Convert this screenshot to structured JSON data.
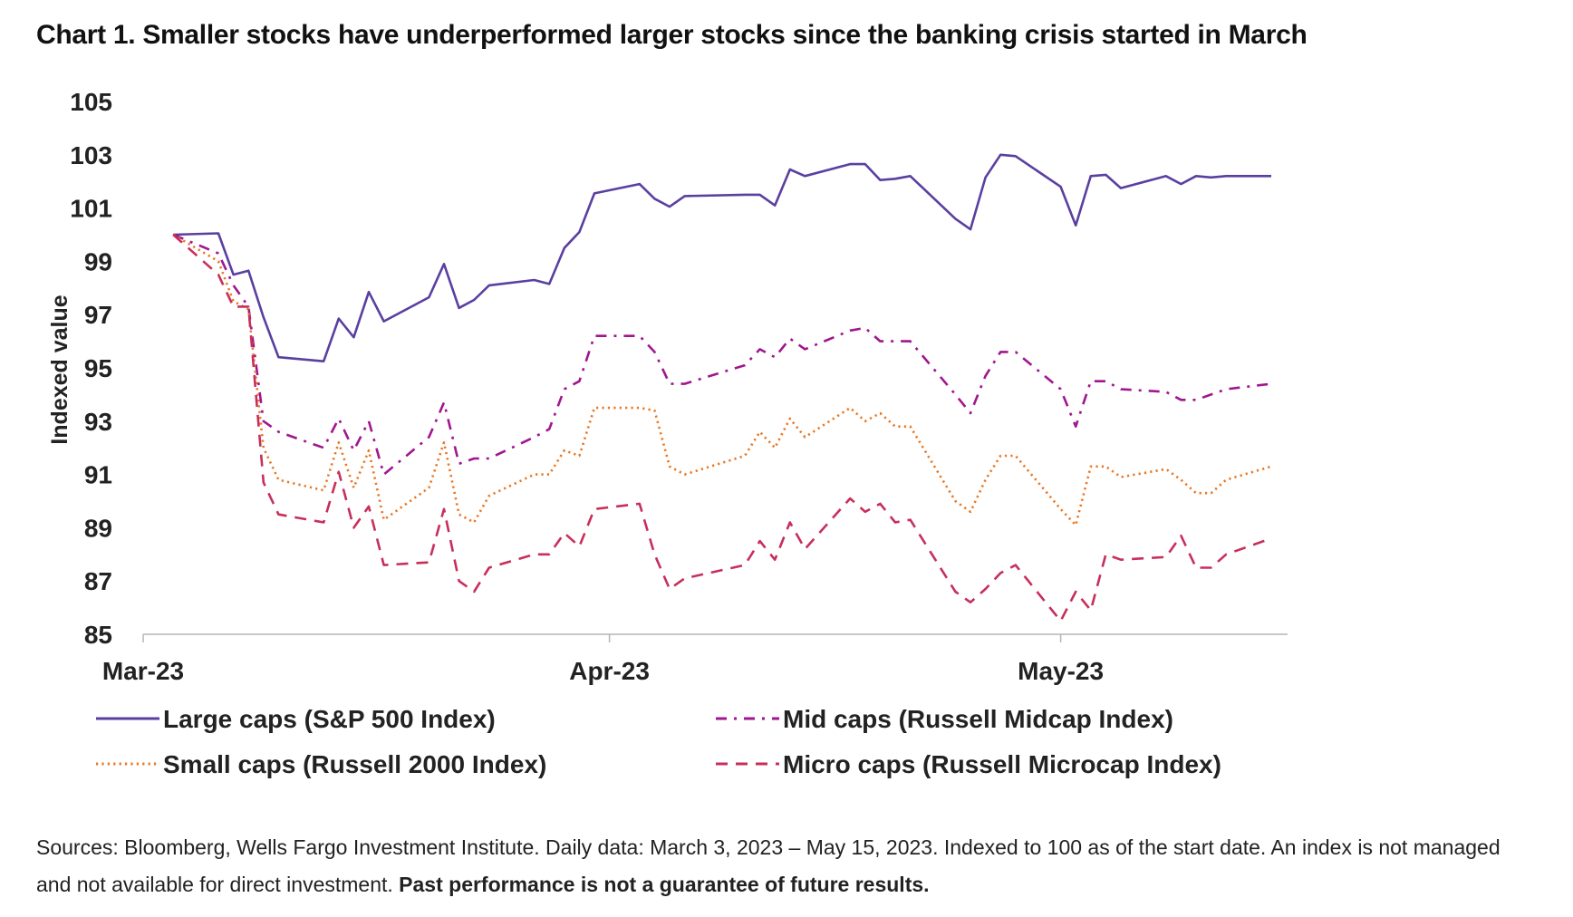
{
  "chart_data": {
    "type": "line",
    "title": "Chart 1. Smaller stocks have underperformed larger stocks since the banking crisis started in March",
    "ylabel": "Indexed value",
    "xlabel": "",
    "ylim": [
      85,
      105
    ],
    "yticks": [
      "105",
      "103",
      "101",
      "99",
      "97",
      "95",
      "93",
      "91",
      "89",
      "87",
      "85"
    ],
    "xticks": [
      {
        "label": "Mar-23",
        "date": "2023-03-01"
      },
      {
        "label": "Apr-23",
        "date": "2023-04-01"
      },
      {
        "label": "May-23",
        "date": "2023-05-01"
      }
    ],
    "grid": false,
    "legend_position": "bottom",
    "x": [
      "2023-03-03",
      "2023-03-06",
      "2023-03-07",
      "2023-03-08",
      "2023-03-09",
      "2023-03-10",
      "2023-03-13",
      "2023-03-14",
      "2023-03-15",
      "2023-03-16",
      "2023-03-17",
      "2023-03-20",
      "2023-03-21",
      "2023-03-22",
      "2023-03-23",
      "2023-03-24",
      "2023-03-27",
      "2023-03-28",
      "2023-03-29",
      "2023-03-30",
      "2023-03-31",
      "2023-04-03",
      "2023-04-04",
      "2023-04-05",
      "2023-04-06",
      "2023-04-10",
      "2023-04-11",
      "2023-04-12",
      "2023-04-13",
      "2023-04-14",
      "2023-04-17",
      "2023-04-18",
      "2023-04-19",
      "2023-04-20",
      "2023-04-21",
      "2023-04-24",
      "2023-04-25",
      "2023-04-26",
      "2023-04-27",
      "2023-04-28",
      "2023-05-01",
      "2023-05-02",
      "2023-05-03",
      "2023-05-04",
      "2023-05-05",
      "2023-05-08",
      "2023-05-09",
      "2023-05-10",
      "2023-05-11",
      "2023-05-12",
      "2023-05-15"
    ],
    "series": [
      {
        "name": "Large caps (S&P 500 Index)",
        "color": "#5b3fa0",
        "dash": "solid",
        "values": [
          100.0,
          100.05,
          98.5,
          98.65,
          96.9,
          95.4,
          95.25,
          96.85,
          96.15,
          97.85,
          96.75,
          97.65,
          98.9,
          97.25,
          97.55,
          98.1,
          98.3,
          98.15,
          99.5,
          100.1,
          101.55,
          101.9,
          101.35,
          101.05,
          101.45,
          101.5,
          101.5,
          101.1,
          102.45,
          102.2,
          102.65,
          102.65,
          102.05,
          102.1,
          102.2,
          100.6,
          100.2,
          102.15,
          103.0,
          102.95,
          101.8,
          100.35,
          102.2,
          102.25,
          101.75,
          102.2,
          101.9,
          102.2,
          102.15,
          102.2,
          102.2
        ]
      },
      {
        "name": "Mid caps (Russell Midcap Index)",
        "color": "#a0168f",
        "dash": "dashdot",
        "values": [
          100.0,
          99.3,
          98.1,
          97.3,
          93.0,
          92.6,
          92.0,
          93.1,
          91.9,
          93.0,
          91.0,
          92.4,
          93.7,
          91.4,
          91.6,
          91.6,
          92.4,
          92.7,
          94.2,
          94.5,
          96.2,
          96.2,
          95.6,
          94.4,
          94.4,
          95.1,
          95.7,
          95.4,
          96.1,
          95.7,
          96.4,
          96.5,
          96.0,
          96.0,
          96.0,
          94.0,
          93.3,
          94.7,
          95.6,
          95.6,
          94.2,
          92.8,
          94.5,
          94.5,
          94.2,
          94.1,
          93.8,
          93.8,
          94.0,
          94.2,
          94.4
        ]
      },
      {
        "name": "Small caps (Russell 2000 Index)",
        "color": "#e87722",
        "dash": "dotted",
        "values": [
          100.0,
          99.0,
          97.5,
          97.2,
          92.0,
          90.8,
          90.4,
          92.2,
          90.5,
          91.9,
          89.3,
          90.5,
          92.2,
          89.5,
          89.2,
          90.2,
          91.0,
          91.0,
          91.9,
          91.7,
          93.5,
          93.5,
          93.4,
          91.3,
          91.0,
          91.7,
          92.6,
          92.0,
          93.1,
          92.4,
          93.5,
          93.0,
          93.3,
          92.8,
          92.8,
          90.0,
          89.6,
          90.8,
          91.7,
          91.7,
          89.7,
          89.1,
          91.3,
          91.3,
          90.9,
          91.2,
          90.8,
          90.3,
          90.3,
          90.8,
          91.3
        ]
      },
      {
        "name": "Micro caps (Russell Microcap Index)",
        "color": "#c72f5b",
        "dash": "dashed",
        "values": [
          100.0,
          98.5,
          97.3,
          97.3,
          90.7,
          89.5,
          89.2,
          91.1,
          89.0,
          89.8,
          87.6,
          87.7,
          89.7,
          87.0,
          86.6,
          87.5,
          88.0,
          88.0,
          88.8,
          88.3,
          89.7,
          89.9,
          88.0,
          86.7,
          87.1,
          87.6,
          88.5,
          87.8,
          89.2,
          88.2,
          90.1,
          89.6,
          89.9,
          89.2,
          89.3,
          86.6,
          86.2,
          86.7,
          87.3,
          87.6,
          85.5,
          86.6,
          85.9,
          88.0,
          87.8,
          87.9,
          88.7,
          87.5,
          87.5,
          88.0,
          88.6
        ]
      }
    ]
  },
  "sources_text": "Sources: Bloomberg, Wells Fargo Investment Institute. Daily data: March 3, 2023 – May 15, 2023. Indexed to 100 as of the start date. An index is not managed and not available for direct investment.",
  "disclaimer_bold": "Past performance is not a guarantee of future results."
}
